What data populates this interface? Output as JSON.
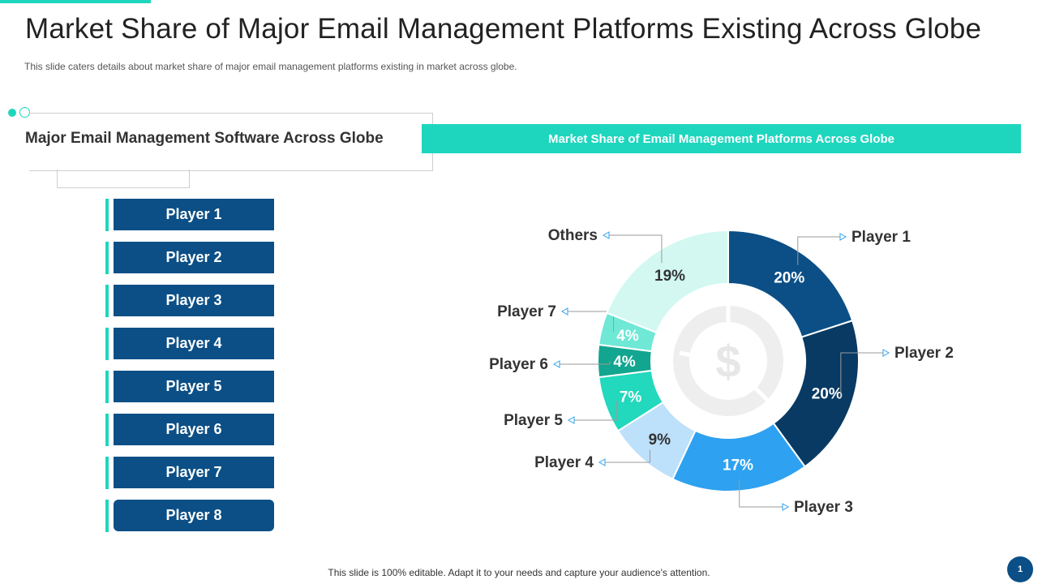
{
  "title": "Market Share of Major Email Management Platforms Existing Across Globe",
  "subtitle": "This slide caters details about market share of major email management platforms existing in market across globe.",
  "left_panel": {
    "heading": "Major Email Management Software Across Globe",
    "players": [
      "Player 1",
      "Player 2",
      "Player 3",
      "Player 4",
      "Player 5",
      "Player 6",
      "Player 7",
      "Player 8"
    ]
  },
  "chart_header": "Market Share of Email Management Platforms Across Globe",
  "chart_data": {
    "type": "pie",
    "style": "donut",
    "title": "Market Share of Email Management Platforms Across Globe",
    "unit": "%",
    "categories": [
      "Player 1",
      "Player 2",
      "Player 3",
      "Player 4",
      "Player 5",
      "Player 6",
      "Player 7",
      "Others"
    ],
    "values": [
      20,
      20,
      17,
      9,
      7,
      4,
      4,
      19
    ],
    "value_labels": [
      "20%",
      "20%",
      "17%",
      "9%",
      "7%",
      "4%",
      "4%",
      "19%"
    ],
    "colors": [
      "#0b4f86",
      "#083a63",
      "#2ea1f0",
      "#bde0fb",
      "#22d8bd",
      "#12a58f",
      "#6fe8d6",
      "#d3f8f2"
    ],
    "center_icon": "dollar-icon"
  },
  "footer": "This slide is 100% editable. Adapt it to your needs and capture your audience's attention.",
  "page_number": "1",
  "colors": {
    "accent": "#1ed6be",
    "primary": "#0b4f86"
  }
}
